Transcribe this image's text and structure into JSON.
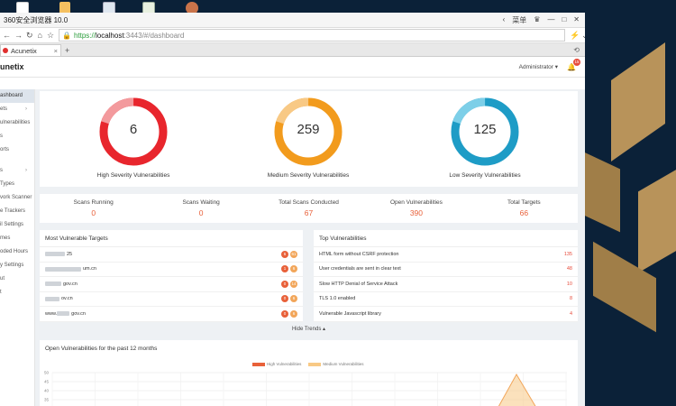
{
  "browser": {
    "title": "360安全浏览器 10.0",
    "title_right": "菜单",
    "url_scheme": "https://",
    "url_host": "localhost",
    "url_rest": ":3443/#/dashboard",
    "tab_label": "Acunetix"
  },
  "app": {
    "logo": "unetix",
    "user": "Administrator",
    "notification_count": "15"
  },
  "sidebar": {
    "items": [
      {
        "label": "ashboard",
        "active": true
      },
      {
        "label": "ets",
        "chevron": true
      },
      {
        "label": "ulnerabilities"
      },
      {
        "label": "s"
      },
      {
        "label": "orts"
      },
      {
        "label": "s",
        "chevron": true
      },
      {
        "label": "Types"
      },
      {
        "label": "vork Scanner"
      },
      {
        "label": "e Trackers"
      },
      {
        "label": "il Settings"
      },
      {
        "label": "mes"
      },
      {
        "label": "oded Hours"
      },
      {
        "label": "y Settings"
      },
      {
        "label": "ut"
      },
      {
        "label": "t"
      }
    ]
  },
  "severity": [
    {
      "value": "6",
      "label": "High Severity Vulnerabilities",
      "color": "#e8262d",
      "light": "#f39a9d"
    },
    {
      "value": "259",
      "label": "Medium Severity Vulnerabilities",
      "color": "#f29b1d",
      "light": "#f8c985"
    },
    {
      "value": "125",
      "label": "Low Severity Vulnerabilities",
      "color": "#1e9cc6",
      "light": "#7dcfe8"
    }
  ],
  "stats": [
    {
      "label": "Scans Running",
      "value": "0"
    },
    {
      "label": "Scans Waiting",
      "value": "0"
    },
    {
      "label": "Total Scans Conducted",
      "value": "67"
    },
    {
      "label": "Open Vulnerabilities",
      "value": "390"
    },
    {
      "label": "Total Targets",
      "value": "66"
    }
  ],
  "most_vulnerable": {
    "title": "Most Vulnerable Targets",
    "rows": [
      {
        "text": "25",
        "high": "6",
        "med": "61"
      },
      {
        "text": "um.cn",
        "high": "1",
        "med": "6"
      },
      {
        "text": "gov.cn",
        "high": "0",
        "med": "14"
      },
      {
        "text": "ov.cn",
        "high": "0",
        "med": "6"
      },
      {
        "text": "gov.cn",
        "prefix": "www.",
        "high": "0",
        "med": "6"
      }
    ]
  },
  "top_vulns": {
    "title": "Top Vulnerabilities",
    "rows": [
      {
        "name": "HTML form without CSRF protection",
        "count": "135"
      },
      {
        "name": "User credentials are sent in clear text",
        "count": "48"
      },
      {
        "name": "Slow HTTP Denial of Service Attack",
        "count": "10"
      },
      {
        "name": "TLS 1.0 enabled",
        "count": "8"
      },
      {
        "name": "Vulnerable Javascript library",
        "count": "4"
      }
    ]
  },
  "hide_trends": "Hide Trends",
  "trend_chart": {
    "title": "Open Vulnerabilities for the past 12 months",
    "legend_high": "High Vulnerabilities",
    "legend_medium": "Medium Vulnerabilities",
    "yticks": [
      "50",
      "45",
      "40",
      "35",
      "30",
      "25"
    ],
    "high_color": "#e8613a",
    "medium_color": "#f8c985"
  }
}
